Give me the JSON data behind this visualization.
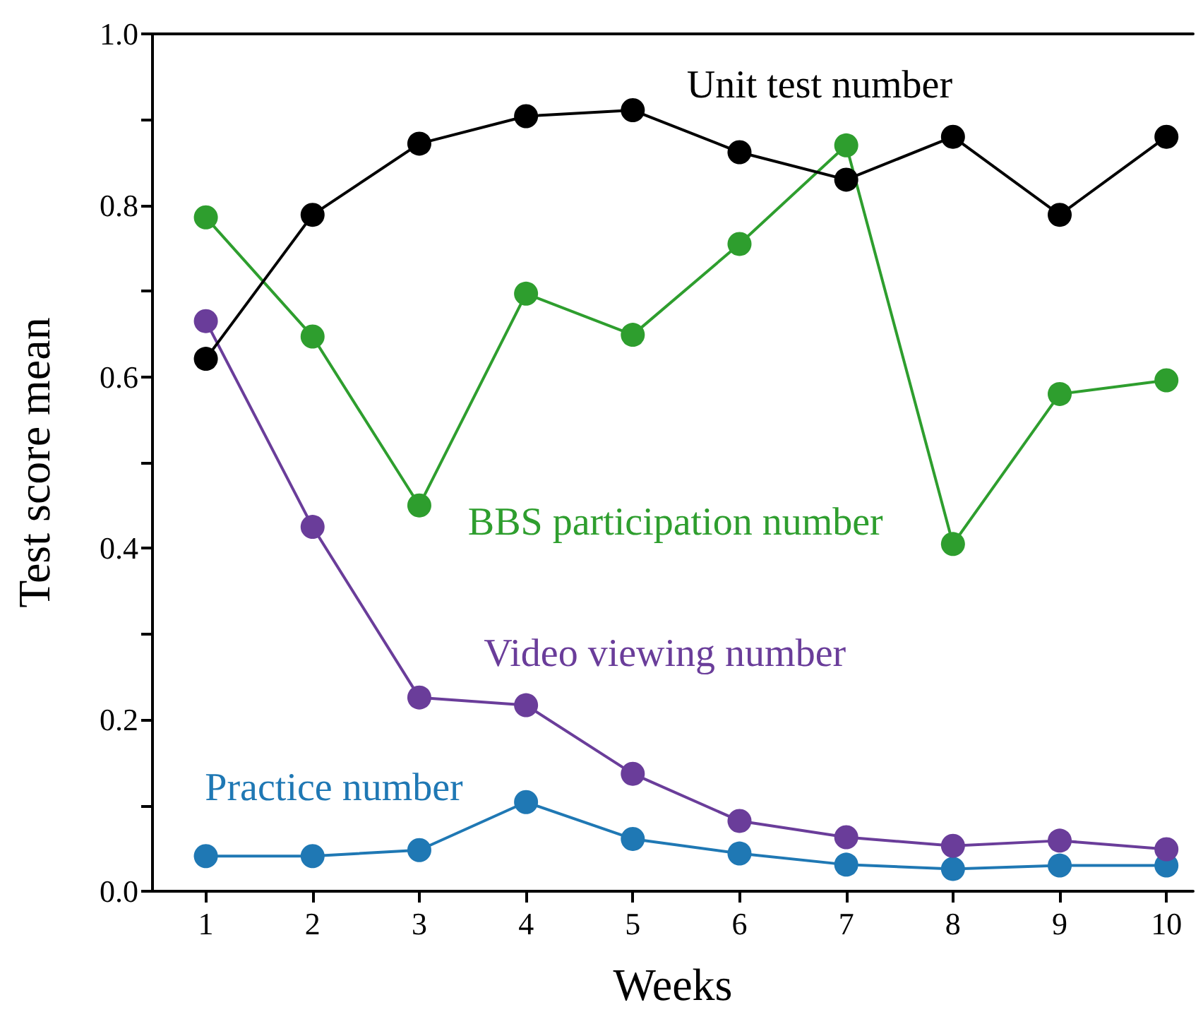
{
  "chart_data": {
    "type": "line",
    "xlabel": "Weeks",
    "ylabel": "Test score mean",
    "x": [
      1,
      2,
      3,
      4,
      5,
      6,
      7,
      8,
      9,
      10
    ],
    "xlim": [
      0.5,
      10.25
    ],
    "xticks": [
      1,
      2,
      3,
      4,
      5,
      6,
      7,
      8,
      9,
      10
    ],
    "ylim": [
      0,
      1
    ],
    "yticks": [
      {
        "value": 0,
        "label": "0.0"
      },
      {
        "value": 0.1,
        "label": null
      },
      {
        "value": 0.2,
        "label": "0.2"
      },
      {
        "value": 0.3,
        "label": null
      },
      {
        "value": 0.4,
        "label": "0.4"
      },
      {
        "value": 0.5,
        "label": null
      },
      {
        "value": 0.6,
        "label": "0.6"
      },
      {
        "value": 0.7,
        "label": null
      },
      {
        "value": 0.8,
        "label": "0.8"
      },
      {
        "value": 0.9,
        "label": null
      },
      {
        "value": 1,
        "label": "1.0"
      }
    ],
    "marker": "circle",
    "line_style": "solid",
    "grid": false,
    "legend": false,
    "series": [
      {
        "name": "Unit test number",
        "color": "#000000",
        "values": [
          0.621,
          0.789,
          0.872,
          0.904,
          0.911,
          0.862,
          0.83,
          0.88,
          0.789,
          0.88
        ]
      },
      {
        "name": "BBS participation number",
        "color": "#2e9e2e",
        "values": [
          0.786,
          0.647,
          0.45,
          0.697,
          0.649,
          0.755,
          0.87,
          0.405,
          0.58,
          0.596
        ]
      },
      {
        "name": "Video viewing number",
        "color": "#6a3d9a",
        "values": [
          0.665,
          0.425,
          0.226,
          0.217,
          0.137,
          0.082,
          0.063,
          0.053,
          0.059,
          0.049
        ]
      },
      {
        "name": "Practice number",
        "color": "#1f78b4",
        "values": [
          0.041,
          0.041,
          0.048,
          0.104,
          0.061,
          0.044,
          0.031,
          0.026,
          0.03,
          0.03
        ]
      }
    ]
  }
}
